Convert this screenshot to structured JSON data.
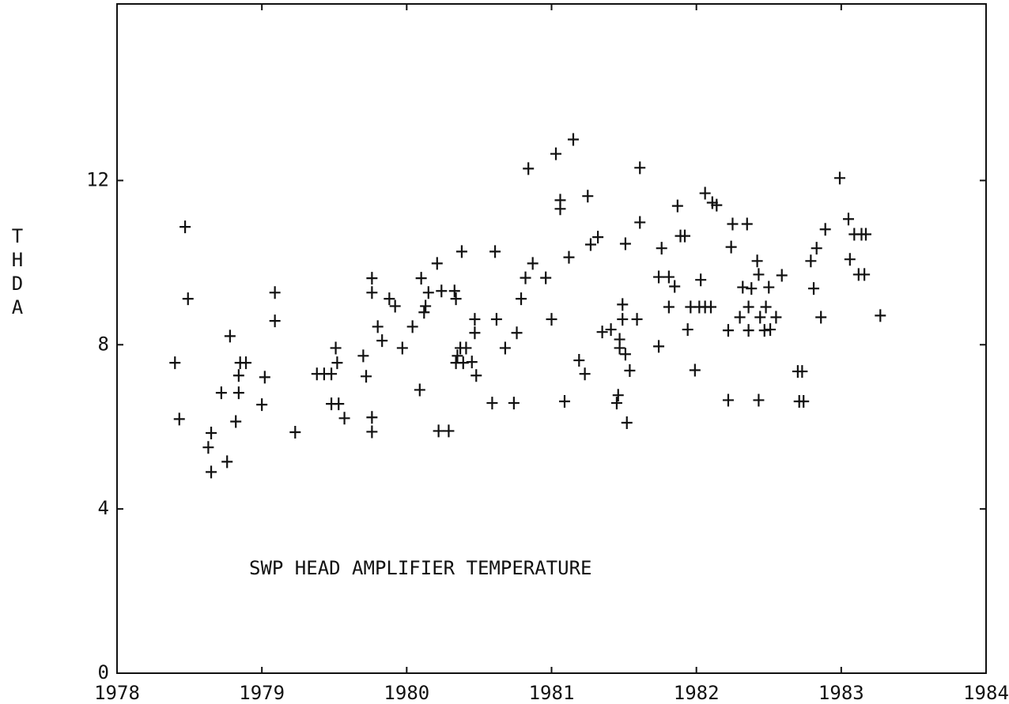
{
  "chart_data": {
    "type": "scatter",
    "y_label": "THDA",
    "annotation": "SWP  HEAD AMPLIFIER TEMPERATURE",
    "xlim": [
      1978,
      1984
    ],
    "xticks": [
      1978,
      1979,
      1980,
      1981,
      1982,
      1983,
      1984
    ],
    "ylim": [
      0,
      16.3
    ],
    "yticks": [
      0,
      4,
      8,
      12
    ],
    "color": "#111111",
    "series": [
      {
        "name": null,
        "color": "#111111",
        "x": [
          1978.4,
          1978.43,
          1978.47,
          1978.49,
          1978.63,
          1978.65,
          1978.65,
          1978.72,
          1978.76,
          1978.78,
          1978.82,
          1978.84,
          1978.84,
          1978.85,
          1978.89,
          1979.02,
          1979.0,
          1979.09,
          1979.09,
          1979.23,
          1979.38,
          1979.43,
          1979.48,
          1979.48,
          1979.51,
          1979.52,
          1979.53,
          1979.57,
          1979.7,
          1979.72,
          1979.76,
          1979.76,
          1979.76,
          1979.76,
          1979.8,
          1979.83,
          1979.88,
          1979.92,
          1979.97,
          1980.04,
          1980.09,
          1980.1,
          1980.12,
          1980.13,
          1980.15,
          1980.21,
          1980.24,
          1980.22,
          1980.29,
          1980.33,
          1980.34,
          1980.34,
          1980.35,
          1980.37,
          1980.38,
          1980.39,
          1980.41,
          1980.45,
          1980.47,
          1980.47,
          1980.48,
          1980.59,
          1980.61,
          1980.62,
          1980.68,
          1980.74,
          1980.76,
          1980.79,
          1980.82,
          1980.84,
          1980.87,
          1980.96,
          1981.0,
          1981.03,
          1981.06,
          1981.06,
          1981.09,
          1981.12,
          1981.15,
          1981.19,
          1981.23,
          1981.25,
          1981.27,
          1981.32,
          1981.35,
          1981.41,
          1981.51,
          1981.46,
          1981.45,
          1981.47,
          1981.47,
          1981.49,
          1981.49,
          1981.51,
          1981.52,
          1981.54,
          1981.59,
          1981.61,
          1981.61,
          1981.74,
          1981.76,
          1981.74,
          1981.81,
          1981.81,
          1981.85,
          1981.87,
          1981.89,
          1981.92,
          1981.94,
          1981.96,
          1981.99,
          1982.02,
          1982.03,
          1982.06,
          1982.1,
          1982.06,
          1982.11,
          1982.14,
          1982.22,
          1982.22,
          1982.24,
          1982.25,
          1982.3,
          1982.32,
          1982.35,
          1982.36,
          1982.36,
          1982.38,
          1982.42,
          1982.43,
          1982.43,
          1982.44,
          1982.47,
          1982.48,
          1982.5,
          1982.51,
          1982.55,
          1982.59,
          1982.7,
          1982.73,
          1982.71,
          1982.74,
          1982.79,
          1982.81,
          1982.83,
          1982.86,
          1982.89,
          1982.99,
          1983.05,
          1983.06,
          1983.09,
          1983.14,
          1983.12,
          1983.16,
          1983.17,
          1983.27
        ],
        "values": [
          7.56,
          6.19,
          10.87,
          9.12,
          5.5,
          5.85,
          4.9,
          6.83,
          5.15,
          8.21,
          6.13,
          6.83,
          7.25,
          7.56,
          7.56,
          7.21,
          6.54,
          9.27,
          8.58,
          5.87,
          7.29,
          7.29,
          7.29,
          6.56,
          7.92,
          7.56,
          6.56,
          6.21,
          7.73,
          7.23,
          9.62,
          9.27,
          6.23,
          5.88,
          8.44,
          8.1,
          9.12,
          8.94,
          7.92,
          8.44,
          6.9,
          9.62,
          8.79,
          8.94,
          9.27,
          9.98,
          9.31,
          5.9,
          5.9,
          9.31,
          7.56,
          9.12,
          7.73,
          7.92,
          10.27,
          7.56,
          7.92,
          7.58,
          8.62,
          8.29,
          7.25,
          6.58,
          10.27,
          8.62,
          7.92,
          6.58,
          8.29,
          9.12,
          9.63,
          12.29,
          9.98,
          9.63,
          8.62,
          12.65,
          11.52,
          11.31,
          6.62,
          10.13,
          13.0,
          7.62,
          7.29,
          11.62,
          10.44,
          10.62,
          8.31,
          8.37,
          10.46,
          6.77,
          6.58,
          8.13,
          7.92,
          8.98,
          8.62,
          7.77,
          6.1,
          7.37,
          8.62,
          12.31,
          10.98,
          7.96,
          10.35,
          9.65,
          9.65,
          8.92,
          9.42,
          11.38,
          10.65,
          10.65,
          8.37,
          8.92,
          7.38,
          8.92,
          9.58,
          8.92,
          8.92,
          11.69,
          11.46,
          11.4,
          8.35,
          6.65,
          10.38,
          10.94,
          8.67,
          9.4,
          10.94,
          8.92,
          8.35,
          9.37,
          10.04,
          9.71,
          6.65,
          8.67,
          8.35,
          8.92,
          9.4,
          8.37,
          8.67,
          9.69,
          7.35,
          7.35,
          6.62,
          6.62,
          10.04,
          9.37,
          10.35,
          8.67,
          10.81,
          12.06,
          11.06,
          10.08,
          10.69,
          10.69,
          9.71,
          9.71,
          10.69,
          8.71
        ]
      }
    ]
  }
}
